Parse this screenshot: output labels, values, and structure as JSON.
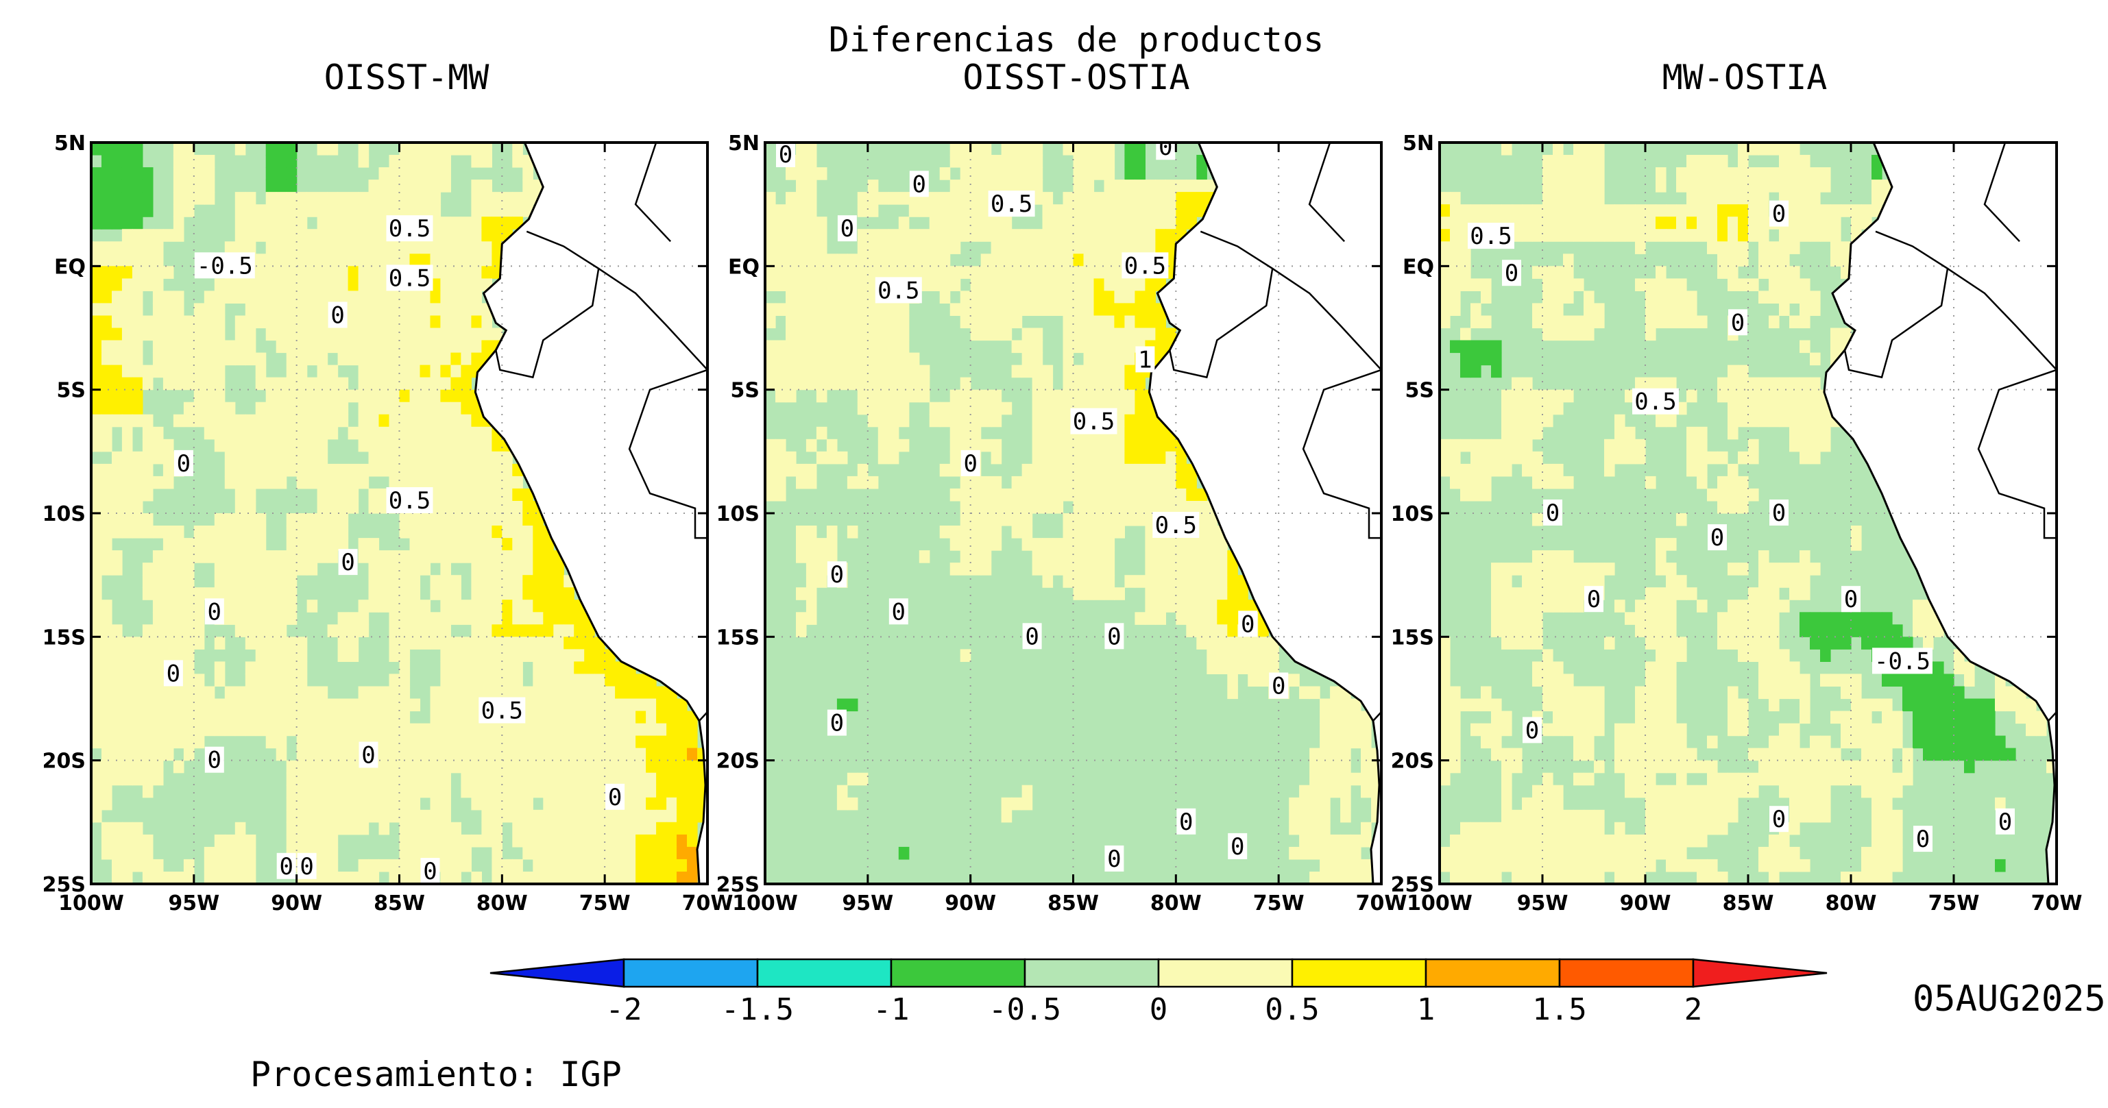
{
  "title": "Diferencias de productos",
  "credit": "Procesamiento: IGP",
  "date": "05AUG2025",
  "axes": {
    "lon_ticks": [
      "100W",
      "95W",
      "90W",
      "85W",
      "80W",
      "75W",
      "70W"
    ],
    "lat_ticks": [
      "5N",
      "EQ",
      "5S",
      "10S",
      "15S",
      "20S",
      "25S"
    ],
    "lon_range": [
      -100,
      -70
    ],
    "lat_range": [
      -25,
      5
    ]
  },
  "panels": [
    {
      "id": "oisst-mw",
      "title": "OISST-MW",
      "contour_labels": [
        {
          "text": "0.5",
          "lon": -84.5,
          "lat": 1.5
        },
        {
          "text": "-0.5",
          "lon": -93.5,
          "lat": 0
        },
        {
          "text": "0.5",
          "lon": -84.5,
          "lat": -0.5
        },
        {
          "text": "0",
          "lon": -88,
          "lat": -2
        },
        {
          "text": "0",
          "lon": -95.5,
          "lat": -8
        },
        {
          "text": "0.5",
          "lon": -84.5,
          "lat": -9.5
        },
        {
          "text": "0",
          "lon": -87.5,
          "lat": -12
        },
        {
          "text": "0",
          "lon": -94,
          "lat": -14
        },
        {
          "text": "0",
          "lon": -96,
          "lat": -16.5
        },
        {
          "text": "0.5",
          "lon": -80,
          "lat": -18
        },
        {
          "text": "0",
          "lon": -86.5,
          "lat": -19.8
        },
        {
          "text": "0",
          "lon": -94,
          "lat": -20
        },
        {
          "text": "0",
          "lon": -74.5,
          "lat": -21.5
        },
        {
          "text": "0",
          "lon": -90.5,
          "lat": -24.3
        },
        {
          "text": "0",
          "lon": -89.5,
          "lat": -24.3
        },
        {
          "text": "0",
          "lon": -83.5,
          "lat": -24.5
        }
      ]
    },
    {
      "id": "oisst-ostia",
      "title": "OISST-OSTIA",
      "contour_labels": [
        {
          "text": "0",
          "lon": -99,
          "lat": 4.5
        },
        {
          "text": "0",
          "lon": -92.5,
          "lat": 3.3
        },
        {
          "text": "0",
          "lon": -80.5,
          "lat": 4.8
        },
        {
          "text": "0.5",
          "lon": -88,
          "lat": 2.5
        },
        {
          "text": "0",
          "lon": -96,
          "lat": 1.5
        },
        {
          "text": "0.5",
          "lon": -81.5,
          "lat": 0
        },
        {
          "text": "0.5",
          "lon": -93.5,
          "lat": -1
        },
        {
          "text": "1",
          "lon": -81.5,
          "lat": -3.8
        },
        {
          "text": "0.5",
          "lon": -84,
          "lat": -6.3
        },
        {
          "text": "0",
          "lon": -90,
          "lat": -8
        },
        {
          "text": "0.5",
          "lon": -80,
          "lat": -10.5
        },
        {
          "text": "0",
          "lon": -96.5,
          "lat": -12.5
        },
        {
          "text": "0",
          "lon": -93.5,
          "lat": -14
        },
        {
          "text": "0",
          "lon": -87,
          "lat": -15
        },
        {
          "text": "0",
          "lon": -83,
          "lat": -15
        },
        {
          "text": "0",
          "lon": -76.5,
          "lat": -14.5
        },
        {
          "text": "0",
          "lon": -75,
          "lat": -17
        },
        {
          "text": "0",
          "lon": -96.5,
          "lat": -18.5
        },
        {
          "text": "0",
          "lon": -79.5,
          "lat": -22.5
        },
        {
          "text": "0",
          "lon": -77,
          "lat": -23.5
        },
        {
          "text": "0",
          "lon": -83,
          "lat": -24
        }
      ]
    },
    {
      "id": "mw-ostia",
      "title": "MW-OSTIA",
      "contour_labels": [
        {
          "text": "0.5",
          "lon": -97.5,
          "lat": 1.2
        },
        {
          "text": "0",
          "lon": -96.5,
          "lat": -0.3
        },
        {
          "text": "0",
          "lon": -83.5,
          "lat": 2.1
        },
        {
          "text": "0",
          "lon": -85.5,
          "lat": -2.3
        },
        {
          "text": "0.5",
          "lon": -89.5,
          "lat": -5.5
        },
        {
          "text": "0",
          "lon": -94.5,
          "lat": -10
        },
        {
          "text": "0",
          "lon": -83.5,
          "lat": -10
        },
        {
          "text": "0",
          "lon": -86.5,
          "lat": -11
        },
        {
          "text": "0",
          "lon": -92.5,
          "lat": -13.5
        },
        {
          "text": "0",
          "lon": -80,
          "lat": -13.5
        },
        {
          "text": "-0.5",
          "lon": -77.5,
          "lat": -16
        },
        {
          "text": "0",
          "lon": -95.5,
          "lat": -18.8
        },
        {
          "text": "0",
          "lon": -83.5,
          "lat": -22.4
        },
        {
          "text": "0",
          "lon": -72.5,
          "lat": -22.5
        },
        {
          "text": "0",
          "lon": -76.5,
          "lat": -23.2
        }
      ]
    }
  ],
  "colorbar": {
    "levels": [
      "-2",
      "-1.5",
      "-1",
      "-0.5",
      "0",
      "0.5",
      "1",
      "1.5",
      "2"
    ],
    "colors": [
      "#0a1ee6",
      "#1ea5f0",
      "#1ee6c3",
      "#3cc83c",
      "#b4e6b4",
      "#fafab4",
      "#fff000",
      "#ffaa00",
      "#ff5a00",
      "#f01e1e"
    ]
  }
}
